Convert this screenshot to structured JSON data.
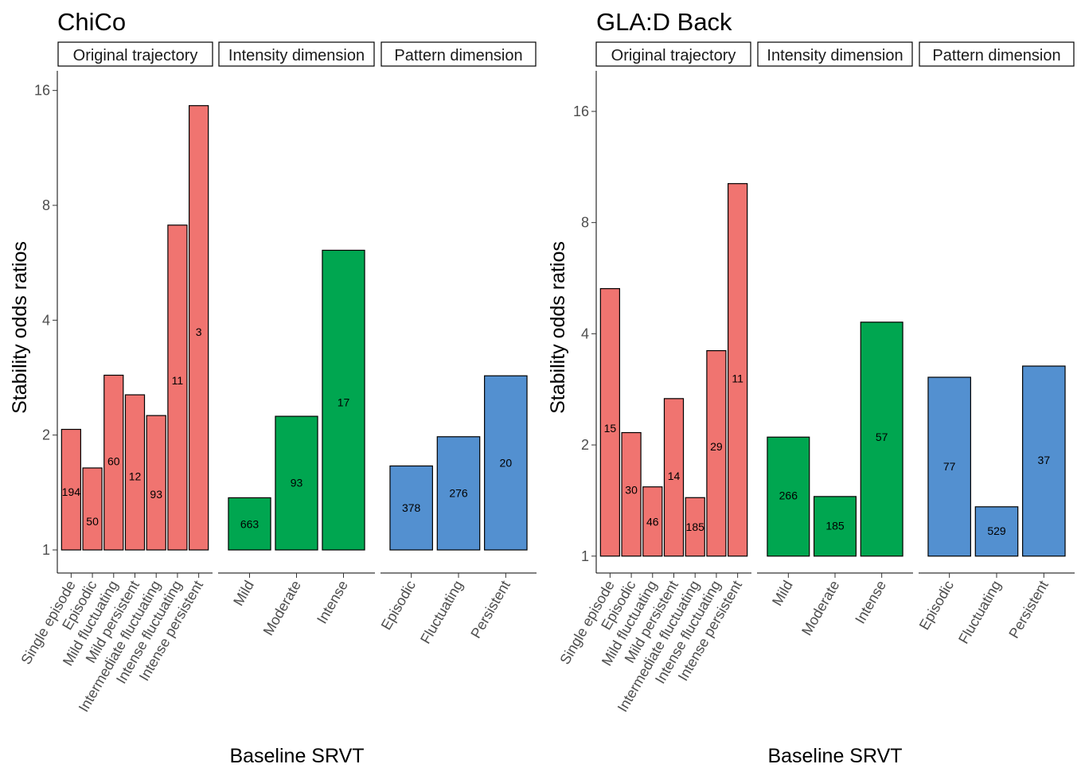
{
  "chart_data": [
    {
      "type": "bar",
      "title": "ChiCo",
      "xlabel": "Baseline SRVT",
      "ylabel": "Stability odds ratios",
      "y_scale": "log2",
      "y_ticks": [
        1,
        2,
        4,
        8,
        16
      ],
      "ylim": [
        0.87,
        17.5
      ],
      "grid": false,
      "colors": {
        "Original trajectory": "#F07470",
        "Intensity dimension": "#00A650",
        "Pattern dimension": "#5390D0"
      },
      "panels": [
        {
          "name": "Original trajectory",
          "categories": [
            "Single episode",
            "Episodic",
            "Mild fluctuating",
            "Mild persistent",
            "Intermediate fluctuating",
            "Intense fluctuating",
            "Intense persistent"
          ],
          "values": [
            2.07,
            1.64,
            2.87,
            2.55,
            2.25,
            7.1,
            14.6
          ],
          "labels": [
            "194",
            "50",
            "60",
            "12",
            "93",
            "11",
            "3"
          ],
          "label_values": [
            1.42,
            1.19,
            1.71,
            1.56,
            1.4,
            2.78,
            3.73
          ]
        },
        {
          "name": "Intensity dimension",
          "categories": [
            "Mild",
            "Moderate",
            "Intense"
          ],
          "values": [
            1.37,
            2.24,
            6.1
          ],
          "labels": [
            "663",
            "93",
            "17"
          ],
          "label_values": [
            1.17,
            1.5,
            2.44
          ]
        },
        {
          "name": "Pattern dimension",
          "categories": [
            "Episodic",
            "Fluctuating",
            "Persistent"
          ],
          "values": [
            1.66,
            1.98,
            2.86
          ],
          "labels": [
            "378",
            "276",
            "20"
          ],
          "label_values": [
            1.29,
            1.41,
            1.69
          ]
        }
      ]
    },
    {
      "type": "bar",
      "title": "GLA:D Back",
      "xlabel": "Baseline SRVT",
      "ylabel": "Stability odds ratios",
      "y_scale": "log2",
      "y_ticks": [
        1,
        2,
        4,
        8,
        16
      ],
      "ylim": [
        0.9,
        20
      ],
      "grid": false,
      "colors": {
        "Original trajectory": "#F07470",
        "Intensity dimension": "#00A650",
        "Pattern dimension": "#5390D0"
      },
      "panels": [
        {
          "name": "Original trajectory",
          "categories": [
            "Single episode",
            "Episodic",
            "Mild fluctuating",
            "Mild persistent",
            "Intermediate fluctuating",
            "Intense fluctuating",
            "Intense persistent"
          ],
          "values": [
            5.3,
            2.16,
            1.54,
            2.67,
            1.44,
            3.6,
            10.2
          ],
          "labels": [
            "15",
            "30",
            "46",
            "14",
            "185",
            "29",
            "11"
          ],
          "label_values": [
            2.22,
            1.51,
            1.24,
            1.65,
            1.2,
            1.98,
            3.03
          ]
        },
        {
          "name": "Intensity dimension",
          "categories": [
            "Mild",
            "Moderate",
            "Intense"
          ],
          "values": [
            2.1,
            1.45,
            4.3
          ],
          "labels": [
            "266",
            "185",
            "57"
          ],
          "label_values": [
            1.46,
            1.21,
            2.1
          ]
        },
        {
          "name": "Pattern dimension",
          "categories": [
            "Episodic",
            "Fluctuating",
            "Persistent"
          ],
          "values": [
            3.05,
            1.36,
            3.27
          ],
          "labels": [
            "77",
            "529",
            "37"
          ],
          "label_values": [
            1.75,
            1.17,
            1.82
          ]
        }
      ]
    }
  ]
}
